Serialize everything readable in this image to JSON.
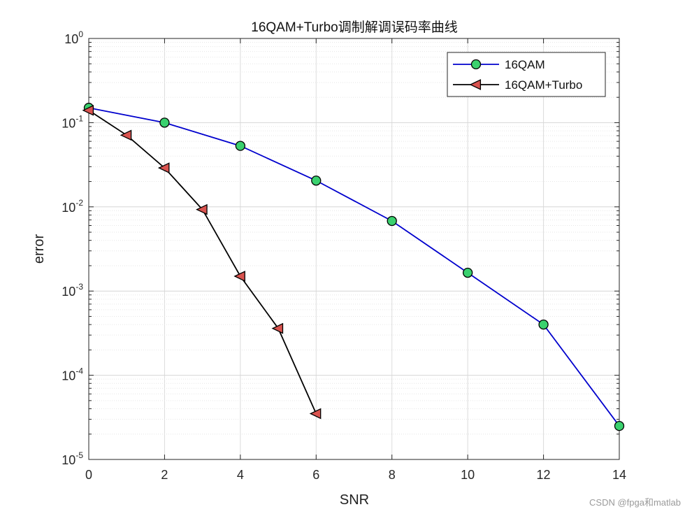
{
  "chart_data": {
    "type": "line",
    "title": "16QAM+Turbo调制解调误码率曲线",
    "xlabel": "SNR",
    "ylabel": "error",
    "xlim": [
      0,
      14
    ],
    "ylim": [
      1e-05,
      1
    ],
    "yscale": "log",
    "grid": true,
    "legend_position": "top-right",
    "x_ticks": [
      "0",
      "2",
      "4",
      "6",
      "8",
      "10",
      "12",
      "14"
    ],
    "y_ticks": [
      {
        "base": "10",
        "exp": "0"
      },
      {
        "base": "10",
        "exp": "-1"
      },
      {
        "base": "10",
        "exp": "-2"
      },
      {
        "base": "10",
        "exp": "-3"
      },
      {
        "base": "10",
        "exp": "-4"
      },
      {
        "base": "10",
        "exp": "-5"
      }
    ],
    "series": [
      {
        "name": "16QAM",
        "color": "#0000cd",
        "marker": "circle",
        "marker_color": "#3ad16e",
        "x": [
          0,
          2,
          4,
          6,
          8,
          10,
          12,
          14
        ],
        "y": [
          0.15,
          0.1,
          0.053,
          0.0205,
          0.0068,
          0.00165,
          0.0004,
          2.5e-05
        ]
      },
      {
        "name": "16QAM+Turbo",
        "color": "#000000",
        "marker": "triangle-left",
        "marker_color": "#d9534f",
        "x": [
          0,
          1,
          2,
          3,
          4,
          5,
          6
        ],
        "y": [
          0.14,
          0.071,
          0.029,
          0.0093,
          0.0015,
          0.00036,
          3.5e-05
        ]
      }
    ]
  },
  "watermark": "CSDN @fpga和matlab"
}
